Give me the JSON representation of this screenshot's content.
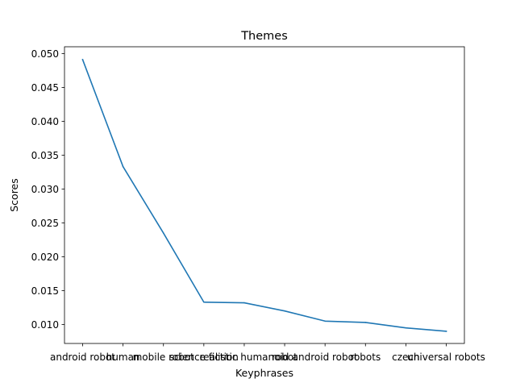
{
  "chart_data": {
    "type": "line",
    "title": "Themes",
    "xlabel": "Keyphrases",
    "ylabel": "Scores",
    "categories": [
      "android robot",
      "human",
      "mobile robot",
      "science fiction",
      "realistic humanoid",
      "robot",
      "android robot",
      "robots",
      "czech",
      "universal robots"
    ],
    "series": [
      {
        "values": [
          0.0491,
          0.0333,
          0.0235,
          0.0133,
          0.0132,
          0.012,
          0.0105,
          0.0103,
          0.0095,
          0.009
        ],
        "color": "#1f77b4"
      }
    ],
    "yticks": [
      "0.010",
      "0.015",
      "0.020",
      "0.025",
      "0.030",
      "0.035",
      "0.040",
      "0.045",
      "0.050"
    ],
    "ylim": [
      0.0072,
      0.051
    ],
    "grid": false,
    "legend": "none"
  }
}
